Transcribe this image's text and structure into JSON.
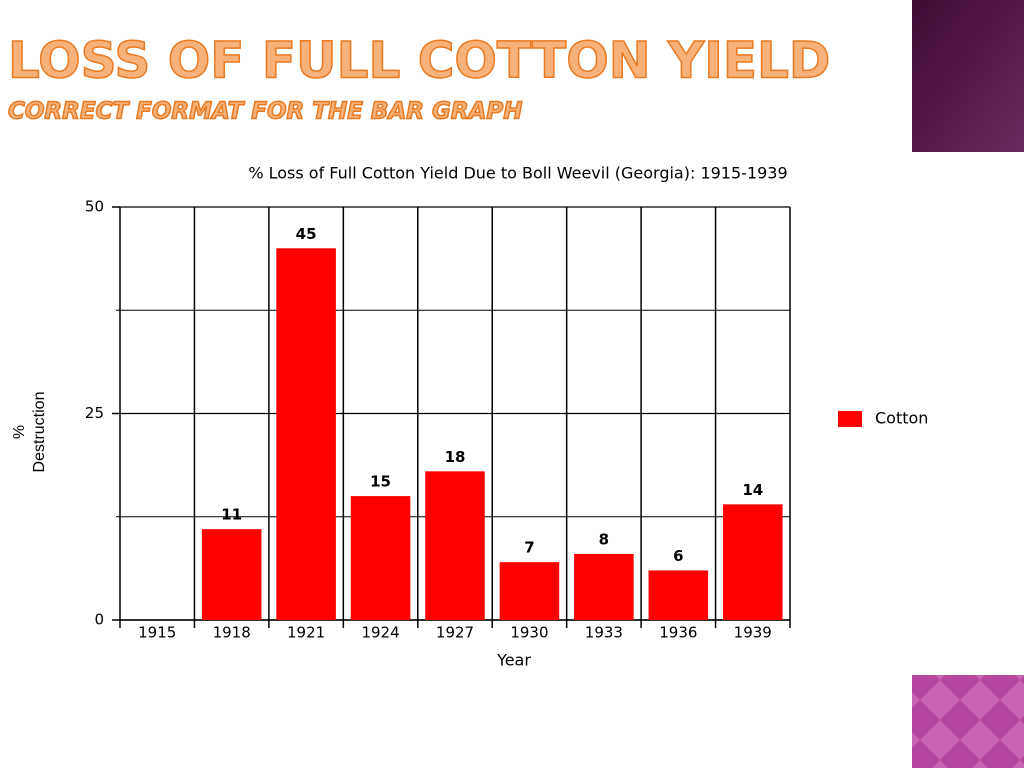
{
  "slide": {
    "title": "Loss of Full Cotton Yield",
    "subtitle": "Correct Format for the Bar Graph"
  },
  "chart_data": {
    "type": "bar",
    "title": "% Loss of Full Cotton Yield Due to Boll Weevil (Georgia): 1915-1939",
    "x_label": "Year",
    "y_label": [
      "%",
      "Destruction"
    ],
    "categories": [
      "1915",
      "1918",
      "1921",
      "1924",
      "1927",
      "1930",
      "1933",
      "1936",
      "1939"
    ],
    "series": [
      {
        "name": "Cotton",
        "color": "#ff0000",
        "values": [
          null,
          11,
          45,
          15,
          18,
          7,
          8,
          6,
          14
        ]
      }
    ],
    "ylim": [
      0,
      50
    ],
    "yticks": [
      0,
      25,
      50
    ],
    "minor_yticks": [
      12.5,
      37.5
    ],
    "grid": true,
    "legend": "right"
  }
}
